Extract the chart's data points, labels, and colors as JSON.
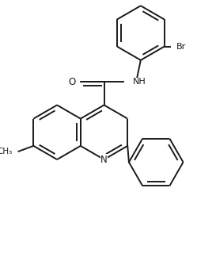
{
  "bg_color": "#ffffff",
  "line_color": "#1a1a1a",
  "text_color": "#1a1a1a",
  "bond_width": 1.4,
  "figsize": [
    2.49,
    3.24
  ],
  "dpi": 100,
  "xlim": [
    -0.1,
    2.4
  ],
  "ylim": [
    -0.1,
    3.3
  ]
}
